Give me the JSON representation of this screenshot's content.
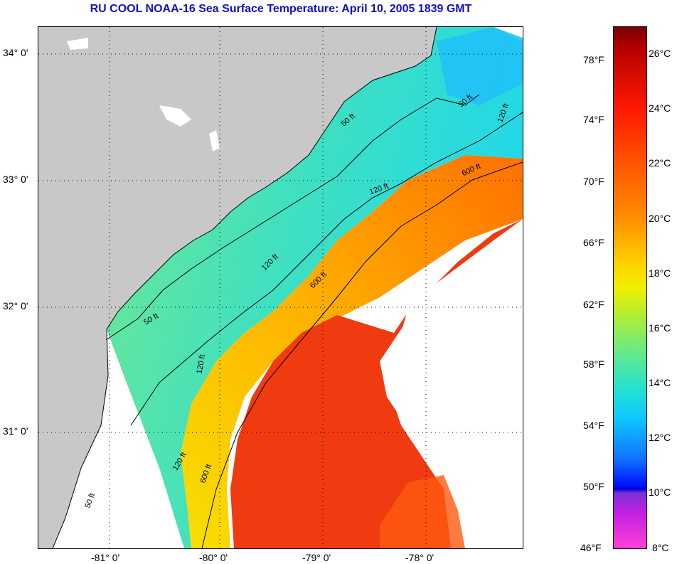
{
  "title": "RU COOL  NOAA-16  Sea Surface Temperature:  April 10, 2005 1839 GMT",
  "map": {
    "latitude_labels": [
      "34° 0'",
      "33° 0'",
      "32° 0'",
      "31° 0'"
    ],
    "longitude_labels": [
      "-81° 0'",
      "-80° 0'",
      "-79° 0'",
      "-78° 0'"
    ],
    "isobath_labels": [
      "50 ft",
      "50 ft",
      "50 ft",
      "50 ft",
      "120 ft",
      "120 ft",
      "120 ft",
      "120 ft",
      "120 ft",
      "600 ft",
      "600 ft",
      "600 ft"
    ],
    "colors": {
      "land": "#c8c8c8",
      "no_data": "#ffffff",
      "cool_water": "#30d8e8",
      "mid_water": "#60e888",
      "warm_water": "#ffd800",
      "gulf_stream": "#f03010"
    }
  },
  "colorbar": {
    "fahrenheit_labels": [
      "78°F",
      "74°F",
      "70°F",
      "66°F",
      "62°F",
      "58°F",
      "54°F",
      "50°F",
      "46°F"
    ],
    "celsius_labels": [
      "26°C",
      "24°C",
      "22°C",
      "20°C",
      "18°C",
      "16°C",
      "14°C",
      "12°C",
      "10°C",
      "8°C"
    ]
  }
}
